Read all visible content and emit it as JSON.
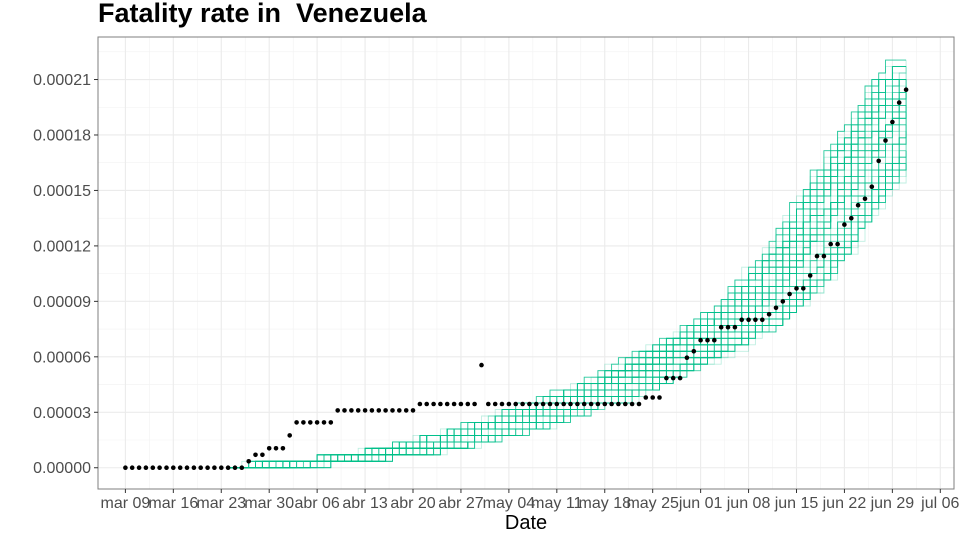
{
  "chart_data": {
    "type": "line",
    "title": "Fatality rate in  Venezuela",
    "xlabel": "Date",
    "ylabel": "",
    "x_ticks": [
      "2020-03-09",
      "2020-03-16",
      "2020-03-23",
      "2020-03-30",
      "2020-04-06",
      "2020-04-13",
      "2020-04-20",
      "2020-04-27",
      "2020-05-04",
      "2020-05-11",
      "2020-05-18",
      "2020-05-25",
      "2020-06-01",
      "2020-06-08",
      "2020-06-15",
      "2020-06-22",
      "2020-06-29",
      "2020-07-06"
    ],
    "x_tick_labels": [
      "mar 09",
      "mar 16",
      "mar 23",
      "mar 30",
      "abr 06",
      "abr 13",
      "abr 20",
      "abr 27",
      "may 04",
      "may 11",
      "may 18",
      "may 25",
      "jun 01",
      "jun 08",
      "jun 15",
      "jun 22",
      "jun 29",
      "jul 06"
    ],
    "y_ticks": [
      0,
      3e-05,
      6e-05,
      9e-05,
      0.00012,
      0.00015,
      0.00018,
      0.00021
    ],
    "y_tick_labels": [
      "0.00000",
      "0.00003",
      "0.00006",
      "0.00009",
      "0.00012",
      "0.00015",
      "0.00018",
      "0.00021"
    ],
    "xlim": [
      "2020-03-05",
      "2020-07-08"
    ],
    "ylim": [
      -1.15e-05,
      0.000233
    ],
    "grid": true,
    "observed": {
      "color": "#000000",
      "points": [
        [
          "2020-03-09",
          0
        ],
        [
          "2020-03-10",
          0
        ],
        [
          "2020-03-11",
          0
        ],
        [
          "2020-03-12",
          0
        ],
        [
          "2020-03-13",
          0
        ],
        [
          "2020-03-14",
          0
        ],
        [
          "2020-03-15",
          0
        ],
        [
          "2020-03-16",
          0
        ],
        [
          "2020-03-17",
          0
        ],
        [
          "2020-03-18",
          0
        ],
        [
          "2020-03-19",
          0
        ],
        [
          "2020-03-20",
          0
        ],
        [
          "2020-03-21",
          0
        ],
        [
          "2020-03-22",
          0
        ],
        [
          "2020-03-23",
          0
        ],
        [
          "2020-03-24",
          0
        ],
        [
          "2020-03-25",
          0
        ],
        [
          "2020-03-26",
          0
        ],
        [
          "2020-03-27",
          3.5e-06
        ],
        [
          "2020-03-28",
          7e-06
        ],
        [
          "2020-03-29",
          7e-06
        ],
        [
          "2020-03-30",
          1.05e-05
        ],
        [
          "2020-03-31",
          1.05e-05
        ],
        [
          "2020-04-01",
          1.05e-05
        ],
        [
          "2020-04-02",
          1.75e-05
        ],
        [
          "2020-04-03",
          2.45e-05
        ],
        [
          "2020-04-04",
          2.45e-05
        ],
        [
          "2020-04-05",
          2.45e-05
        ],
        [
          "2020-04-06",
          2.45e-05
        ],
        [
          "2020-04-07",
          2.45e-05
        ],
        [
          "2020-04-08",
          2.45e-05
        ],
        [
          "2020-04-09",
          3.1e-05
        ],
        [
          "2020-04-10",
          3.1e-05
        ],
        [
          "2020-04-11",
          3.1e-05
        ],
        [
          "2020-04-12",
          3.1e-05
        ],
        [
          "2020-04-13",
          3.1e-05
        ],
        [
          "2020-04-14",
          3.1e-05
        ],
        [
          "2020-04-15",
          3.1e-05
        ],
        [
          "2020-04-16",
          3.1e-05
        ],
        [
          "2020-04-17",
          3.1e-05
        ],
        [
          "2020-04-18",
          3.1e-05
        ],
        [
          "2020-04-19",
          3.1e-05
        ],
        [
          "2020-04-20",
          3.1e-05
        ],
        [
          "2020-04-21",
          3.45e-05
        ],
        [
          "2020-04-22",
          3.45e-05
        ],
        [
          "2020-04-23",
          3.45e-05
        ],
        [
          "2020-04-24",
          3.45e-05
        ],
        [
          "2020-04-25",
          3.45e-05
        ],
        [
          "2020-04-26",
          3.45e-05
        ],
        [
          "2020-04-27",
          3.45e-05
        ],
        [
          "2020-04-28",
          3.45e-05
        ],
        [
          "2020-04-29",
          3.45e-05
        ],
        [
          "2020-04-30",
          5.55e-05
        ],
        [
          "2020-05-01",
          3.45e-05
        ],
        [
          "2020-05-02",
          3.45e-05
        ],
        [
          "2020-05-03",
          3.45e-05
        ],
        [
          "2020-05-04",
          3.45e-05
        ],
        [
          "2020-05-05",
          3.45e-05
        ],
        [
          "2020-05-06",
          3.45e-05
        ],
        [
          "2020-05-07",
          3.45e-05
        ],
        [
          "2020-05-08",
          3.45e-05
        ],
        [
          "2020-05-09",
          3.45e-05
        ],
        [
          "2020-05-10",
          3.45e-05
        ],
        [
          "2020-05-11",
          3.45e-05
        ],
        [
          "2020-05-12",
          3.45e-05
        ],
        [
          "2020-05-13",
          3.45e-05
        ],
        [
          "2020-05-14",
          3.45e-05
        ],
        [
          "2020-05-15",
          3.45e-05
        ],
        [
          "2020-05-16",
          3.45e-05
        ],
        [
          "2020-05-17",
          3.45e-05
        ],
        [
          "2020-05-18",
          3.45e-05
        ],
        [
          "2020-05-19",
          3.45e-05
        ],
        [
          "2020-05-20",
          3.45e-05
        ],
        [
          "2020-05-21",
          3.45e-05
        ],
        [
          "2020-05-22",
          3.45e-05
        ],
        [
          "2020-05-23",
          3.45e-05
        ],
        [
          "2020-05-24",
          3.8e-05
        ],
        [
          "2020-05-25",
          3.8e-05
        ],
        [
          "2020-05-26",
          3.8e-05
        ],
        [
          "2020-05-27",
          4.85e-05
        ],
        [
          "2020-05-28",
          4.85e-05
        ],
        [
          "2020-05-29",
          4.85e-05
        ],
        [
          "2020-05-30",
          5.95e-05
        ],
        [
          "2020-05-31",
          6.3e-05
        ],
        [
          "2020-06-01",
          6.9e-05
        ],
        [
          "2020-06-02",
          6.9e-05
        ],
        [
          "2020-06-03",
          6.9e-05
        ],
        [
          "2020-06-04",
          7.6e-05
        ],
        [
          "2020-06-05",
          7.6e-05
        ],
        [
          "2020-06-06",
          7.6e-05
        ],
        [
          "2020-06-07",
          8e-05
        ],
        [
          "2020-06-08",
          8e-05
        ],
        [
          "2020-06-09",
          8e-05
        ],
        [
          "2020-06-10",
          8e-05
        ],
        [
          "2020-06-11",
          8.3e-05
        ],
        [
          "2020-06-12",
          8.65e-05
        ],
        [
          "2020-06-13",
          9e-05
        ],
        [
          "2020-06-14",
          9.4e-05
        ],
        [
          "2020-06-15",
          9.7e-05
        ],
        [
          "2020-06-16",
          9.7e-05
        ],
        [
          "2020-06-17",
          0.000104
        ],
        [
          "2020-06-18",
          0.0001145
        ],
        [
          "2020-06-19",
          0.0001145
        ],
        [
          "2020-06-20",
          0.000121
        ],
        [
          "2020-06-21",
          0.000121
        ],
        [
          "2020-06-22",
          0.0001315
        ],
        [
          "2020-06-23",
          0.000135
        ],
        [
          "2020-06-24",
          0.000142
        ],
        [
          "2020-06-25",
          0.0001455
        ],
        [
          "2020-06-26",
          0.000152
        ],
        [
          "2020-06-27",
          0.000166
        ],
        [
          "2020-06-28",
          0.000177
        ],
        [
          "2020-06-29",
          0.000187
        ],
        [
          "2020-06-30",
          0.0001975
        ],
        [
          "2020-07-01",
          0.0002045
        ]
      ]
    },
    "simulations": {
      "color": "#00BF8C",
      "count": 60,
      "start": "2020-03-24",
      "end": "2020-07-01",
      "median_path": [
        [
          "2020-03-24",
          0
        ],
        [
          "2020-04-06",
          3e-06
        ],
        [
          "2020-04-20",
          1e-05
        ],
        [
          "2020-05-04",
          2.4e-05
        ],
        [
          "2020-05-18",
          4.2e-05
        ],
        [
          "2020-06-01",
          6.8e-05
        ],
        [
          "2020-06-08",
          8.5e-05
        ],
        [
          "2020-06-15",
          0.000113
        ],
        [
          "2020-06-22",
          0.000153
        ],
        [
          "2020-06-29",
          0.000193
        ],
        [
          "2020-07-01",
          0.000207
        ]
      ]
    }
  }
}
